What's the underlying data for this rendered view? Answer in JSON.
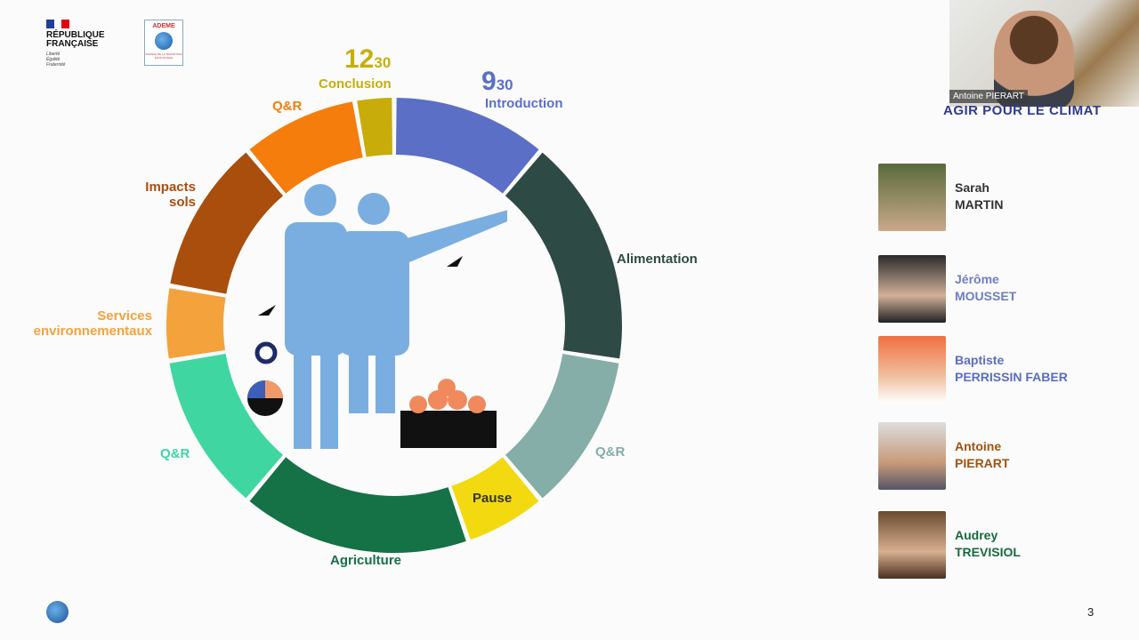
{
  "logos": {
    "republique": {
      "title_line1": "RÉPUBLIQUE",
      "title_line2": "FRANÇAISE",
      "motto": [
        "Liberté",
        "Égalité",
        "Fraternité"
      ]
    },
    "ademe": {
      "title": "ADEME",
      "subtitle": "AGENCE DE LA TRANSITION ÉCOLOGIQUE"
    }
  },
  "agenda": {
    "start_time": {
      "hour": "9",
      "minutes": "30"
    },
    "end_time": {
      "hour": "12",
      "minutes": "30"
    },
    "segments": [
      {
        "label": "Introduction",
        "color": "#5b6fc7"
      },
      {
        "label": "Alimentation",
        "color": "#2e4a44"
      },
      {
        "label": "Q&R",
        "color": "#84aea7"
      },
      {
        "label": "Pause",
        "color": "#f3da10"
      },
      {
        "label": "Agriculture",
        "color": "#157146"
      },
      {
        "label": "Q&R",
        "color": "#3fd6a2"
      },
      {
        "label": "Services environnementaux",
        "color": "#f4a23c"
      },
      {
        "label": "Impacts sols",
        "color": "#a94e0c"
      },
      {
        "label": "Q&R",
        "color": "#f47d0c"
      },
      {
        "label": "Conclusion",
        "color": "#c8ad0a"
      }
    ]
  },
  "video": {
    "participant": "Antoine PIERART",
    "overlay_text": "AGIR POUR LE CLIMAT"
  },
  "speakers": [
    {
      "first": "Sarah",
      "last": "MARTIN",
      "color": "#333333"
    },
    {
      "first": "Jérôme",
      "last": "MOUSSET",
      "color": "#6d7ec4"
    },
    {
      "first": "Baptiste",
      "last": "PERRISSIN FABER",
      "color": "#5a6dbd"
    },
    {
      "first": "Antoine",
      "last": "PIERART",
      "color": "#a0520f"
    },
    {
      "first": "Audrey",
      "last": "TREVISIOL",
      "color": "#17683f"
    }
  ],
  "page_number": "3"
}
